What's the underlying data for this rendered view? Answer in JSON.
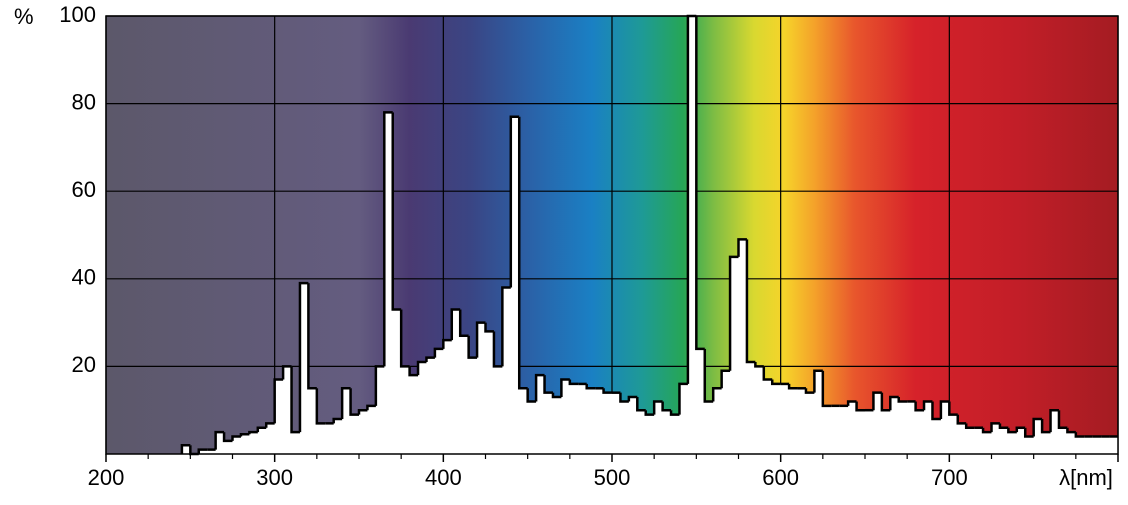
{
  "chart_data": {
    "type": "histogram",
    "y_label": "%",
    "bins": [
      245,
      250,
      255,
      260,
      265,
      270,
      275,
      280,
      285,
      290,
      295,
      300,
      305,
      310,
      315,
      320,
      325,
      330,
      335,
      340,
      345,
      350,
      355,
      360,
      365,
      370,
      375,
      380,
      385,
      390,
      395,
      400,
      405,
      410,
      415,
      420,
      425,
      430,
      435,
      440,
      445,
      450,
      455,
      460,
      465,
      470,
      475,
      480,
      485,
      490,
      495,
      500,
      505,
      510,
      515,
      520,
      525,
      530,
      535,
      540,
      545,
      550,
      555,
      560,
      565,
      570,
      575,
      580,
      585,
      590,
      595,
      600,
      605,
      610,
      615,
      620,
      625,
      630,
      635,
      640,
      645,
      650,
      655,
      660,
      665,
      670,
      675,
      680,
      685,
      690,
      695,
      700,
      705,
      710,
      715,
      720,
      725,
      730,
      735,
      740,
      745,
      750,
      755,
      760,
      765,
      770,
      775,
      780,
      785,
      790,
      795,
      800
    ],
    "values": [
      2,
      0,
      1,
      1,
      5,
      3,
      4,
      4.5,
      5,
      6,
      7,
      17,
      20,
      5,
      39,
      15,
      7,
      7,
      8,
      15,
      9,
      10,
      11,
      20,
      78,
      33,
      20,
      18,
      21,
      22,
      24,
      26,
      33,
      27,
      22,
      30,
      28,
      20,
      38,
      77,
      15,
      12,
      18,
      14,
      13,
      17,
      16,
      16,
      15,
      15,
      14,
      14,
      12,
      13,
      10,
      9,
      12,
      10,
      9,
      16,
      100,
      24,
      12,
      15,
      19,
      45,
      49,
      21,
      20,
      17,
      16,
      16,
      15,
      15,
      14,
      19,
      11,
      11,
      11,
      12,
      10,
      10,
      14,
      10,
      13,
      12,
      12,
      10,
      12,
      8,
      12,
      9,
      7,
      6,
      6,
      5,
      7,
      6,
      5,
      6,
      4,
      8,
      5,
      10,
      6,
      5,
      4,
      4,
      4,
      4,
      4
    ],
    "color": "#ffffff",
    "line_color": "#000000",
    "xlim": [
      200,
      800
    ],
    "ylim": [
      0,
      100
    ],
    "xticks": [
      200,
      300,
      400,
      500,
      600,
      700,
      {
        "value": 800,
        "label": "λ[nm]"
      }
    ],
    "yticks": [
      20,
      40,
      60,
      80,
      100
    ],
    "grid": true
  }
}
